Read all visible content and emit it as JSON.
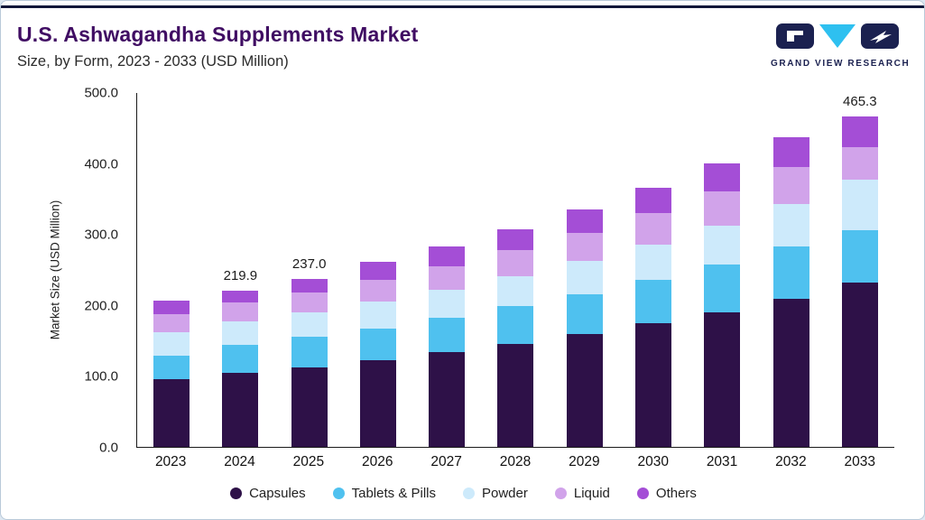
{
  "header": {
    "title": "U.S. Ashwagandha Supplements Market",
    "subtitle": "Size, by Form, 2023 - 2033 (USD Million)",
    "logo_text": "GRAND VIEW RESEARCH"
  },
  "chart_data": {
    "type": "bar",
    "stacked": true,
    "title": "U.S. Ashwagandha Supplements Market Size, by Form, 2023 - 2033 (USD Million)",
    "categories": [
      "2023",
      "2024",
      "2025",
      "2026",
      "2027",
      "2028",
      "2029",
      "2030",
      "2031",
      "2032",
      "2033"
    ],
    "series": [
      {
        "name": "Capsules",
        "color": "#2e1148",
        "values": [
          95,
          104,
          112,
          122,
          133,
          145,
          159,
          174,
          190,
          209,
          231
        ]
      },
      {
        "name": "Tablets & Pills",
        "color": "#4fc1ef",
        "values": [
          34,
          40,
          43,
          45,
          49,
          53,
          56,
          61,
          67,
          73,
          74
        ]
      },
      {
        "name": "Powder",
        "color": "#cdeafb",
        "values": [
          33,
          33,
          35,
          38,
          40,
          43,
          47,
          50,
          55,
          60,
          72
        ]
      },
      {
        "name": "Liquid",
        "color": "#d1a3ea",
        "values": [
          25,
          26,
          28,
          31,
          33,
          36,
          40,
          44,
          48,
          53,
          45
        ]
      },
      {
        "name": "Others",
        "color": "#a44ed6",
        "values": [
          19,
          16.9,
          19,
          25,
          28,
          30,
          33,
          36,
          40,
          42,
          43.3
        ]
      }
    ],
    "ylabel": "Market Size (USD Million)",
    "ylim": [
      0,
      500
    ],
    "ytick_step": 100,
    "ytick_labels": [
      "0.0",
      "100.0",
      "200.0",
      "300.0",
      "400.0",
      "500.0"
    ],
    "grid": false,
    "legend_position": "bottom",
    "annotations": [
      {
        "category": "2024",
        "text": "219.9"
      },
      {
        "category": "2025",
        "text": "237.0"
      },
      {
        "category": "2033",
        "text": "465.3"
      }
    ]
  }
}
